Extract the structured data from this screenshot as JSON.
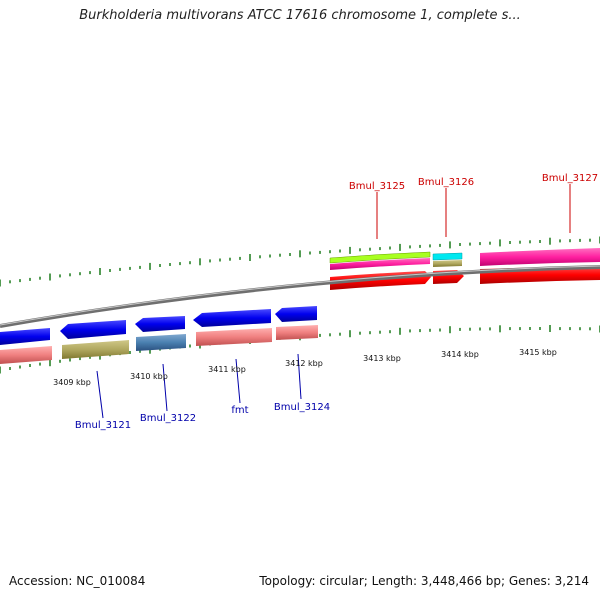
{
  "title": "Burkholderia multivorans ATCC 17616 chromosome 1, complete s...",
  "footer": {
    "accession": "Accession: NC_010084",
    "summary": "Topology: circular; Length: 3,448,466 bp; Genes: 3,214"
  },
  "colors": {
    "forward_label": "#cc0000",
    "reverse_label": "#0000aa",
    "tick": "#1a7a1a",
    "backbone": "#8a8a8a"
  },
  "kbp_labels": [
    "3409 kbp",
    "3410 kbp",
    "3411 kbp",
    "3412 kbp",
    "3413 kbp",
    "3414 kbp",
    "3415 kbp"
  ],
  "forward_genes": [
    {
      "name": "Bmul_3125",
      "color": "#ff0000"
    },
    {
      "name": "Bmul_3126",
      "color": "#ff0000"
    },
    {
      "name": "Bmul_3127",
      "color": "#ff0000"
    }
  ],
  "reverse_genes": [
    {
      "name": "Bmul_3121",
      "color": "#0000ee"
    },
    {
      "name": "Bmul_3122",
      "color": "#0000ee"
    },
    {
      "name": "fmt",
      "color": "#0000ee"
    },
    {
      "name": "Bmul_3124",
      "color": "#0000ee"
    }
  ],
  "feature_tracks": {
    "cog_colors": [
      "#a8ff20",
      "#00e8f0",
      "#ff20a0",
      "#f08080",
      "#b0a860",
      "#4a80b0"
    ]
  }
}
